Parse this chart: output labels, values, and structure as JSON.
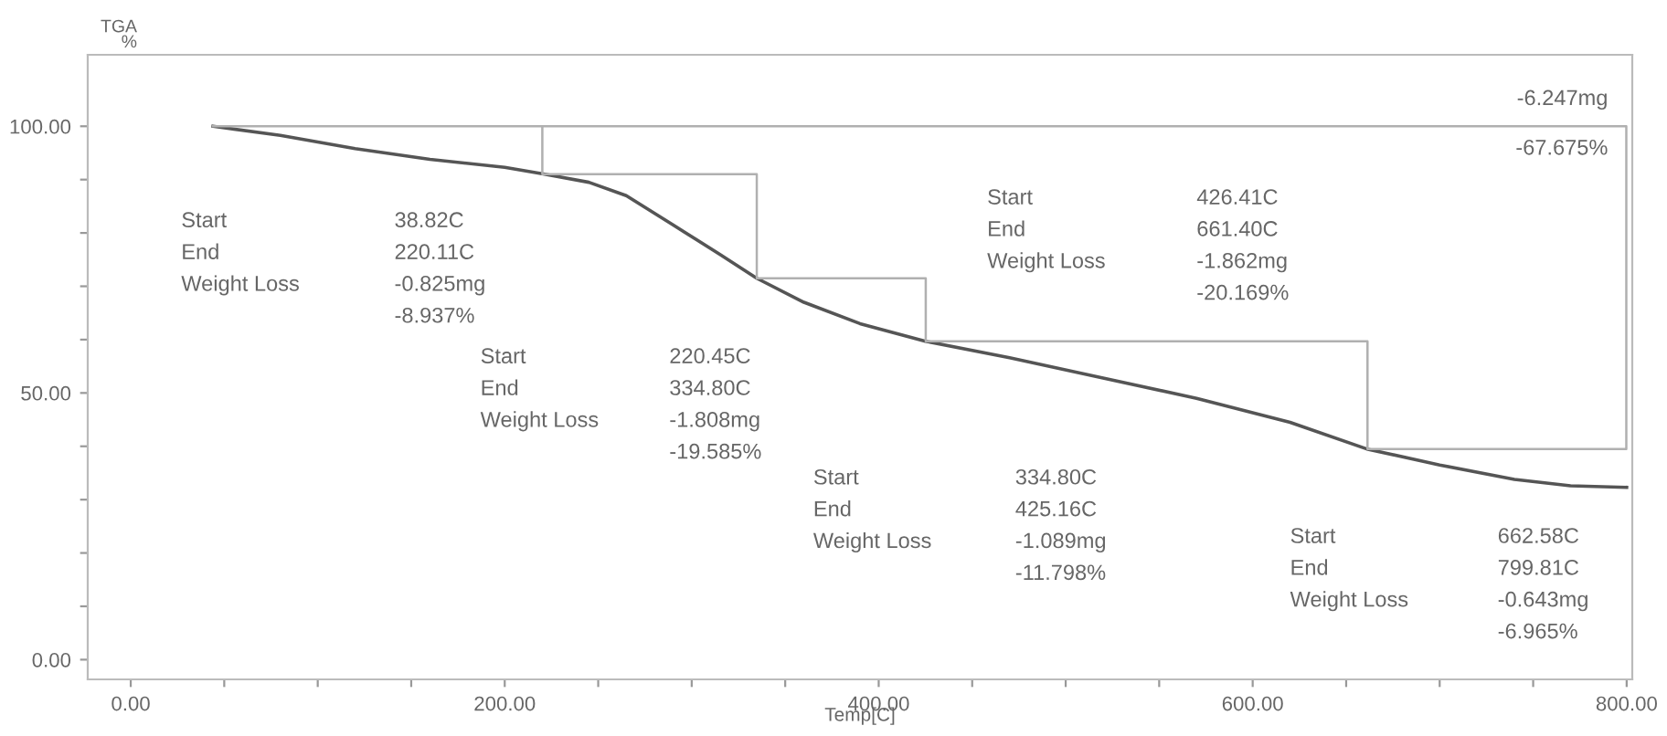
{
  "chart_data": {
    "type": "line",
    "xlabel": "Temp[C]",
    "ylabel": "TGA\n%",
    "xlim": [
      -23,
      803
    ],
    "ylim": [
      -3.7,
      113.4
    ],
    "xticks": [
      {
        "value": 0,
        "label": "0.00"
      },
      {
        "value": 50,
        "label": null
      },
      {
        "value": 100,
        "label": null
      },
      {
        "value": 150,
        "label": null
      },
      {
        "value": 200,
        "label": "200.00"
      },
      {
        "value": 250,
        "label": null
      },
      {
        "value": 300,
        "label": null
      },
      {
        "value": 350,
        "label": null
      },
      {
        "value": 400,
        "label": "400.00"
      },
      {
        "value": 450,
        "label": null
      },
      {
        "value": 500,
        "label": null
      },
      {
        "value": 550,
        "label": null
      },
      {
        "value": 600,
        "label": "600.00"
      },
      {
        "value": 650,
        "label": null
      },
      {
        "value": 700,
        "label": null
      },
      {
        "value": 750,
        "label": null
      },
      {
        "value": 800,
        "label": "800.00"
      }
    ],
    "yticks": [
      {
        "value": 0,
        "label": "0.00"
      },
      {
        "value": 10,
        "label": null
      },
      {
        "value": 20,
        "label": null
      },
      {
        "value": 30,
        "label": null
      },
      {
        "value": 40,
        "label": null
      },
      {
        "value": 50,
        "label": "50.00"
      },
      {
        "value": 60,
        "label": null
      },
      {
        "value": 70,
        "label": null
      },
      {
        "value": 80,
        "label": null
      },
      {
        "value": 90,
        "label": null
      },
      {
        "value": 100,
        "label": "100.00"
      }
    ],
    "grid": false,
    "legend": false,
    "marker": "none",
    "line_style": "solid",
    "series": [
      {
        "color": "#555555",
        "x": [
          44,
          80,
          120,
          160,
          200,
          220,
          245,
          265,
          290,
          315,
          334.8,
          360,
          390,
          425,
          470,
          520,
          570,
          620,
          661,
          700,
          740,
          770,
          800
        ],
        "values": [
          100,
          98.3,
          95.8,
          93.8,
          92.3,
          91.1,
          89.5,
          87,
          81.5,
          76,
          71.5,
          67,
          63,
          59.7,
          56.6,
          52.8,
          49.0,
          44.5,
          39.5,
          36.5,
          33.8,
          32.6,
          32.3
        ]
      },
      {
        "color": "#b0b0b0",
        "x": [
          44,
          220.11,
          220.11,
          334.8,
          334.8,
          425.16,
          425.16,
          661.4,
          661.4,
          799.81,
          799.81,
          220.11
        ],
        "values": [
          100,
          100,
          91,
          91,
          71.5,
          71.5,
          59.7,
          59.7,
          39.5,
          39.5,
          100,
          100
        ]
      }
    ],
    "annotations": [
      "Start\nEnd\nWeight Loss",
      "38.82C\n220.11C\n-0.825mg\n-8.937%",
      "Start\nEnd\nWeight Loss",
      "220.45C\n334.80C\n-1.808mg\n-19.585%",
      "Start\nEnd\nWeight Loss",
      "334.80C\n425.16C\n-1.089mg\n-11.798%",
      "Start\nEnd\nWeight Loss",
      "426.41C\n661.40C\n-1.862mg\n-20.169%",
      "Start\nEnd\nWeight Loss",
      "662.58C\n799.81C\n-0.643mg\n-6.965%",
      "-6.247mg",
      "-67.675%"
    ]
  }
}
